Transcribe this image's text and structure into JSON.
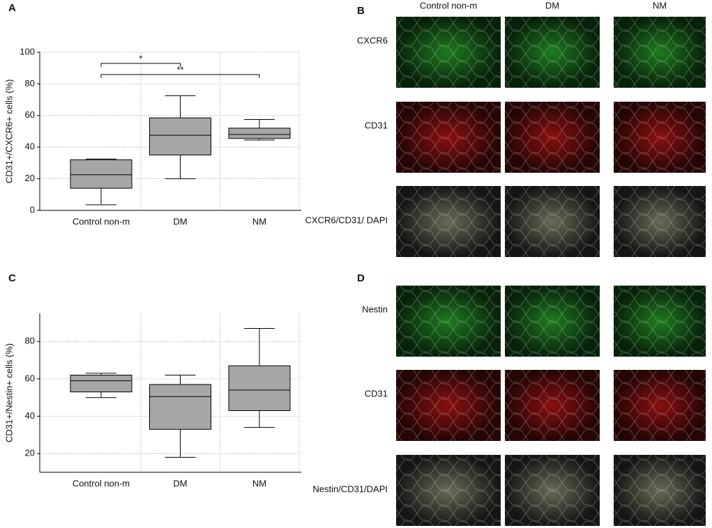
{
  "chart_data": [
    {
      "type": "box",
      "panel": "A",
      "y_label": "CD31+/CXCR6+ cells (%)",
      "categories": [
        "Control non-m",
        "DM",
        "NM"
      ],
      "min": [
        3.5,
        20,
        44.5
      ],
      "q1": [
        14,
        35,
        45.5
      ],
      "median": [
        22.5,
        47.5,
        48
      ],
      "q3": [
        32,
        58.5,
        52
      ],
      "max": [
        32.5,
        72.5,
        57.5
      ],
      "color": "#a6a6a6",
      "ylim": [
        0,
        100
      ],
      "yticks": [
        0,
        20,
        40,
        60,
        80,
        100
      ],
      "grid": true,
      "annotations": [
        {
          "text": "*",
          "from": 0,
          "to": 1
        },
        {
          "text": "**",
          "from": 0,
          "to": 2
        }
      ]
    },
    {
      "type": "box",
      "panel": "C",
      "y_label": "CD31+/Nestin+ cells (%)",
      "categories": [
        "Control non-m",
        "DM",
        "NM"
      ],
      "min": [
        50,
        18,
        34
      ],
      "q1": [
        53,
        33,
        43
      ],
      "median": [
        59,
        50.5,
        54
      ],
      "q3": [
        62,
        57,
        67
      ],
      "max": [
        63,
        62,
        87
      ],
      "color": "#a6a6a6",
      "ylim": [
        10,
        95
      ],
      "yticks": [
        20,
        40,
        60,
        80
      ],
      "grid": true
    }
  ],
  "images": [
    {
      "panel": "B",
      "columns": [
        "Control non-m",
        "DM",
        "NM"
      ],
      "rows": [
        "CXCR6",
        "CD31",
        "CXCR6/CD31/ DAPI"
      ]
    },
    {
      "panel": "D",
      "rows": [
        "Nestin",
        "CD31",
        "Nestin/CD31/DAPI"
      ]
    }
  ]
}
